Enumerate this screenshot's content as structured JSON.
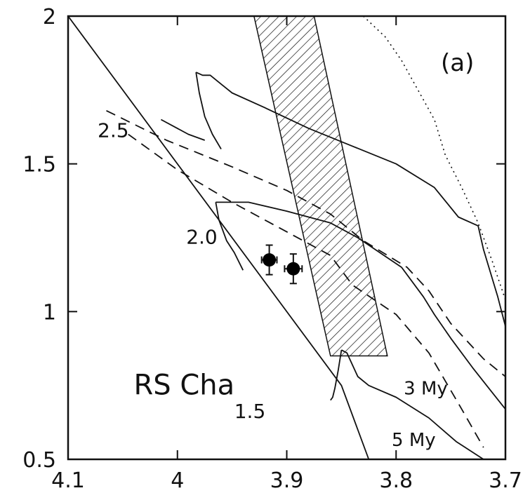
{
  "chart_data": {
    "type": "line",
    "panel_label": "(a)",
    "title": "",
    "xlabel": "",
    "ylabel": "",
    "xlim": [
      4.1,
      3.7
    ],
    "ylim": [
      0.5,
      2.0
    ],
    "x_ticks": [
      {
        "value": 4.1,
        "label": "4.1"
      },
      {
        "value": 4.0,
        "label": "4"
      },
      {
        "value": 3.9,
        "label": "3.9"
      },
      {
        "value": 3.8,
        "label": "3.8"
      },
      {
        "value": 3.7,
        "label": "3.7"
      }
    ],
    "y_ticks": [
      {
        "value": 0.5,
        "label": "0.5"
      },
      {
        "value": 1.0,
        "label": "1"
      },
      {
        "value": 1.5,
        "label": "1.5"
      },
      {
        "value": 2.0,
        "label": "2"
      }
    ],
    "series": [
      {
        "style": "solid",
        "x": [
          4.1,
          3.85,
          3.825
        ],
        "y": [
          2.0,
          0.75,
          0.5
        ]
      },
      {
        "style": "solid",
        "x": [
          3.983,
          3.977,
          3.97,
          3.96,
          3.95,
          3.92,
          3.88,
          3.84,
          3.8,
          3.765,
          3.743,
          3.725,
          3.72,
          3.707,
          3.7
        ],
        "y": [
          1.81,
          1.8,
          1.8,
          1.77,
          1.74,
          1.69,
          1.62,
          1.56,
          1.5,
          1.42,
          1.32,
          1.29,
          1.21,
          1.05,
          0.95
        ]
      },
      {
        "style": "solid",
        "x": [
          3.983,
          3.98,
          3.975,
          3.968,
          3.96
        ],
        "y": [
          1.81,
          1.74,
          1.66,
          1.6,
          1.55
        ]
      },
      {
        "style": "solid",
        "x": [
          4.015,
          3.99,
          3.975
        ],
        "y": [
          1.65,
          1.6,
          1.58
        ]
      },
      {
        "style": "solid",
        "x": [
          3.965,
          3.935,
          3.9,
          3.86,
          3.835,
          3.815,
          3.795,
          3.775,
          3.765,
          3.75,
          3.73,
          3.715,
          3.7
        ],
        "y": [
          1.37,
          1.37,
          1.34,
          1.3,
          1.25,
          1.2,
          1.15,
          1.05,
          0.99,
          0.91,
          0.81,
          0.74,
          0.67
        ]
      },
      {
        "style": "solid",
        "x": [
          3.965,
          3.962,
          3.955,
          3.948,
          3.94
        ],
        "y": [
          1.37,
          1.31,
          1.24,
          1.2,
          1.14
        ]
      },
      {
        "style": "solid",
        "x": [
          3.85,
          3.845,
          3.84,
          3.835,
          3.825,
          3.8,
          3.77,
          3.745,
          3.72,
          3.7
        ],
        "y": [
          0.87,
          0.86,
          0.82,
          0.78,
          0.75,
          0.71,
          0.64,
          0.56,
          0.5,
          0.45
        ]
      },
      {
        "style": "solid",
        "x": [
          3.85,
          3.853,
          3.856,
          3.858,
          3.86
        ],
        "y": [
          0.87,
          0.8,
          0.74,
          0.71,
          0.7
        ]
      },
      {
        "style": "dashed",
        "x": [
          4.065,
          4.01,
          3.95,
          3.9,
          3.86,
          3.83,
          3.79,
          3.77,
          3.75,
          3.72,
          3.7
        ],
        "y": [
          1.68,
          1.58,
          1.49,
          1.41,
          1.33,
          1.24,
          1.15,
          1.07,
          0.96,
          0.84,
          0.78
        ]
      },
      {
        "style": "dashed",
        "x": [
          4.045,
          4.0,
          3.95,
          3.9,
          3.86,
          3.84,
          3.8,
          3.77,
          3.74,
          3.72
        ],
        "y": [
          1.6,
          1.48,
          1.37,
          1.27,
          1.19,
          1.09,
          0.99,
          0.86,
          0.67,
          0.54
        ]
      },
      {
        "style": "dotted",
        "x": [
          3.83,
          3.81,
          3.795,
          3.78,
          3.765,
          3.755,
          3.74,
          3.725,
          3.712,
          3.7
        ],
        "y": [
          2.0,
          1.93,
          1.85,
          1.75,
          1.65,
          1.53,
          1.42,
          1.3,
          1.17,
          1.04
        ]
      }
    ],
    "hatched_band": {
      "x": [
        3.93,
        3.875,
        3.808,
        3.86
      ],
      "y": [
        2.0,
        2.0,
        0.85,
        0.85
      ]
    },
    "points": [
      {
        "x": 3.916,
        "y": 1.175,
        "xerr": 0.007,
        "yerr": 0.05
      },
      {
        "x": 3.894,
        "y": 1.145,
        "xerr": 0.008,
        "yerr": 0.05
      }
    ],
    "annotations": [
      {
        "text": "2.5",
        "x": 4.073,
        "y": 1.59,
        "size": 28
      },
      {
        "text": "2.0",
        "x": 3.992,
        "y": 1.23,
        "size": 28
      },
      {
        "text": "1.5",
        "x": 3.948,
        "y": 0.64,
        "size": 28
      },
      {
        "text": "3 My",
        "x": 3.793,
        "y": 0.72,
        "size": 26
      },
      {
        "text": "5 My",
        "x": 3.804,
        "y": 0.545,
        "size": 26
      },
      {
        "text": "RS Cha",
        "x": 4.04,
        "y": 0.72,
        "size": 40
      }
    ]
  }
}
